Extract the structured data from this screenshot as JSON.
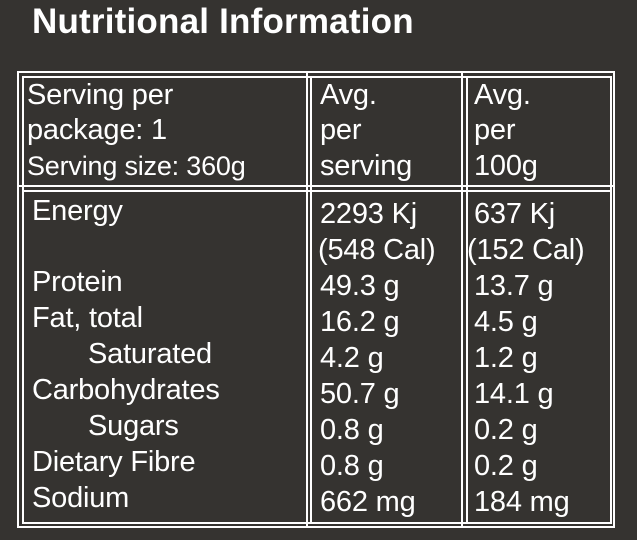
{
  "title": "Nutritional Information",
  "header": {
    "col1": [
      "Serving per",
      "package: 1",
      "Serving size: 360g"
    ],
    "col2": [
      "Avg.",
      "per",
      "serving"
    ],
    "col3": [
      "Avg.",
      "per",
      "100g"
    ]
  },
  "rows": [
    {
      "label": "Energy",
      "per_serving": "2293 Kj",
      "per_100g": "637 Kj"
    },
    {
      "label": "",
      "per_serving": "(548 Cal)",
      "per_100g": "(152 Cal)"
    },
    {
      "label": "Protein",
      "per_serving": "49.3 g",
      "per_100g": "13.7 g"
    },
    {
      "label": "Fat, total",
      "per_serving": "16.2 g",
      "per_100g": "4.5 g"
    },
    {
      "label": "Saturated",
      "per_serving": "4.2 g",
      "per_100g": "1.2 g"
    },
    {
      "label": "Carbohydrates",
      "per_serving": "50.7 g",
      "per_100g": "14.1 g"
    },
    {
      "label": "Sugars",
      "per_serving": "0.8 g",
      "per_100g": "0.2 g"
    },
    {
      "label": "Dietary Fibre",
      "per_serving": "0.8 g",
      "per_100g": "0.2 g"
    },
    {
      "label": "Sodium",
      "per_serving": "662 mg",
      "per_100g": "184 mg"
    }
  ]
}
